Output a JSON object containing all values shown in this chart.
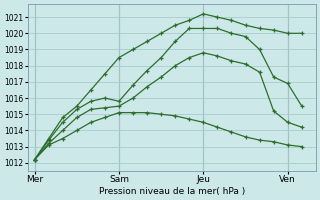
{
  "xlabel": "Pression niveau de la mer( hPa )",
  "bg_color": "#cce8e8",
  "grid_color": "#aacccc",
  "line_color": "#2d6e2d",
  "yticks": [
    1012,
    1013,
    1014,
    1015,
    1016,
    1017,
    1018,
    1019,
    1020,
    1021
  ],
  "ylim": [
    1011.5,
    1021.8
  ],
  "day_labels": [
    "Mer",
    "Sam",
    "Jeu",
    "Ven"
  ],
  "day_positions": [
    0,
    6,
    12,
    18
  ],
  "vline_positions": [
    0,
    6,
    12,
    18
  ],
  "xmin": -0.5,
  "xmax": 20,
  "series": [
    {
      "x": [
        0,
        1,
        2,
        3,
        4,
        5,
        6,
        7,
        8,
        9,
        10,
        11,
        12,
        13,
        14,
        15,
        16,
        17,
        18,
        19
      ],
      "y": [
        1012.2,
        1013.1,
        1013.5,
        1014.0,
        1014.5,
        1014.8,
        1015.1,
        1015.1,
        1015.1,
        1015.0,
        1014.9,
        1014.7,
        1014.5,
        1014.2,
        1013.9,
        1013.6,
        1013.4,
        1013.3,
        1013.1,
        1013.0
      ]
    },
    {
      "x": [
        0,
        1,
        2,
        3,
        4,
        5,
        6,
        7,
        8,
        9,
        10,
        11,
        12,
        13,
        14,
        15,
        16,
        17,
        18,
        19
      ],
      "y": [
        1012.2,
        1013.2,
        1014.0,
        1014.8,
        1015.3,
        1015.4,
        1015.5,
        1016.0,
        1016.7,
        1017.3,
        1018.0,
        1018.5,
        1018.8,
        1018.6,
        1018.3,
        1018.1,
        1017.6,
        1015.2,
        1014.5,
        1014.2
      ]
    },
    {
      "x": [
        0,
        1,
        2,
        3,
        4,
        5,
        6,
        7,
        8,
        9,
        10,
        11,
        12,
        13,
        14,
        15,
        16,
        17,
        18,
        19
      ],
      "y": [
        1012.2,
        1013.4,
        1014.5,
        1015.3,
        1015.8,
        1016.0,
        1015.8,
        1016.8,
        1017.7,
        1018.5,
        1019.5,
        1020.3,
        1020.3,
        1020.3,
        1020.0,
        1019.8,
        1019.0,
        1017.3,
        1016.9,
        1015.5
      ]
    },
    {
      "x": [
        0,
        1,
        2,
        3,
        4,
        5,
        6,
        7,
        8,
        9,
        10,
        11,
        12,
        13,
        14,
        15,
        16,
        17,
        18,
        19
      ],
      "y": [
        1012.2,
        1013.5,
        1014.8,
        1015.5,
        1016.5,
        1017.5,
        1018.5,
        1019.0,
        1019.5,
        1020.0,
        1020.5,
        1020.8,
        1021.2,
        1021.0,
        1020.8,
        1020.5,
        1020.3,
        1020.2,
        1020.0,
        1020.0
      ]
    }
  ]
}
